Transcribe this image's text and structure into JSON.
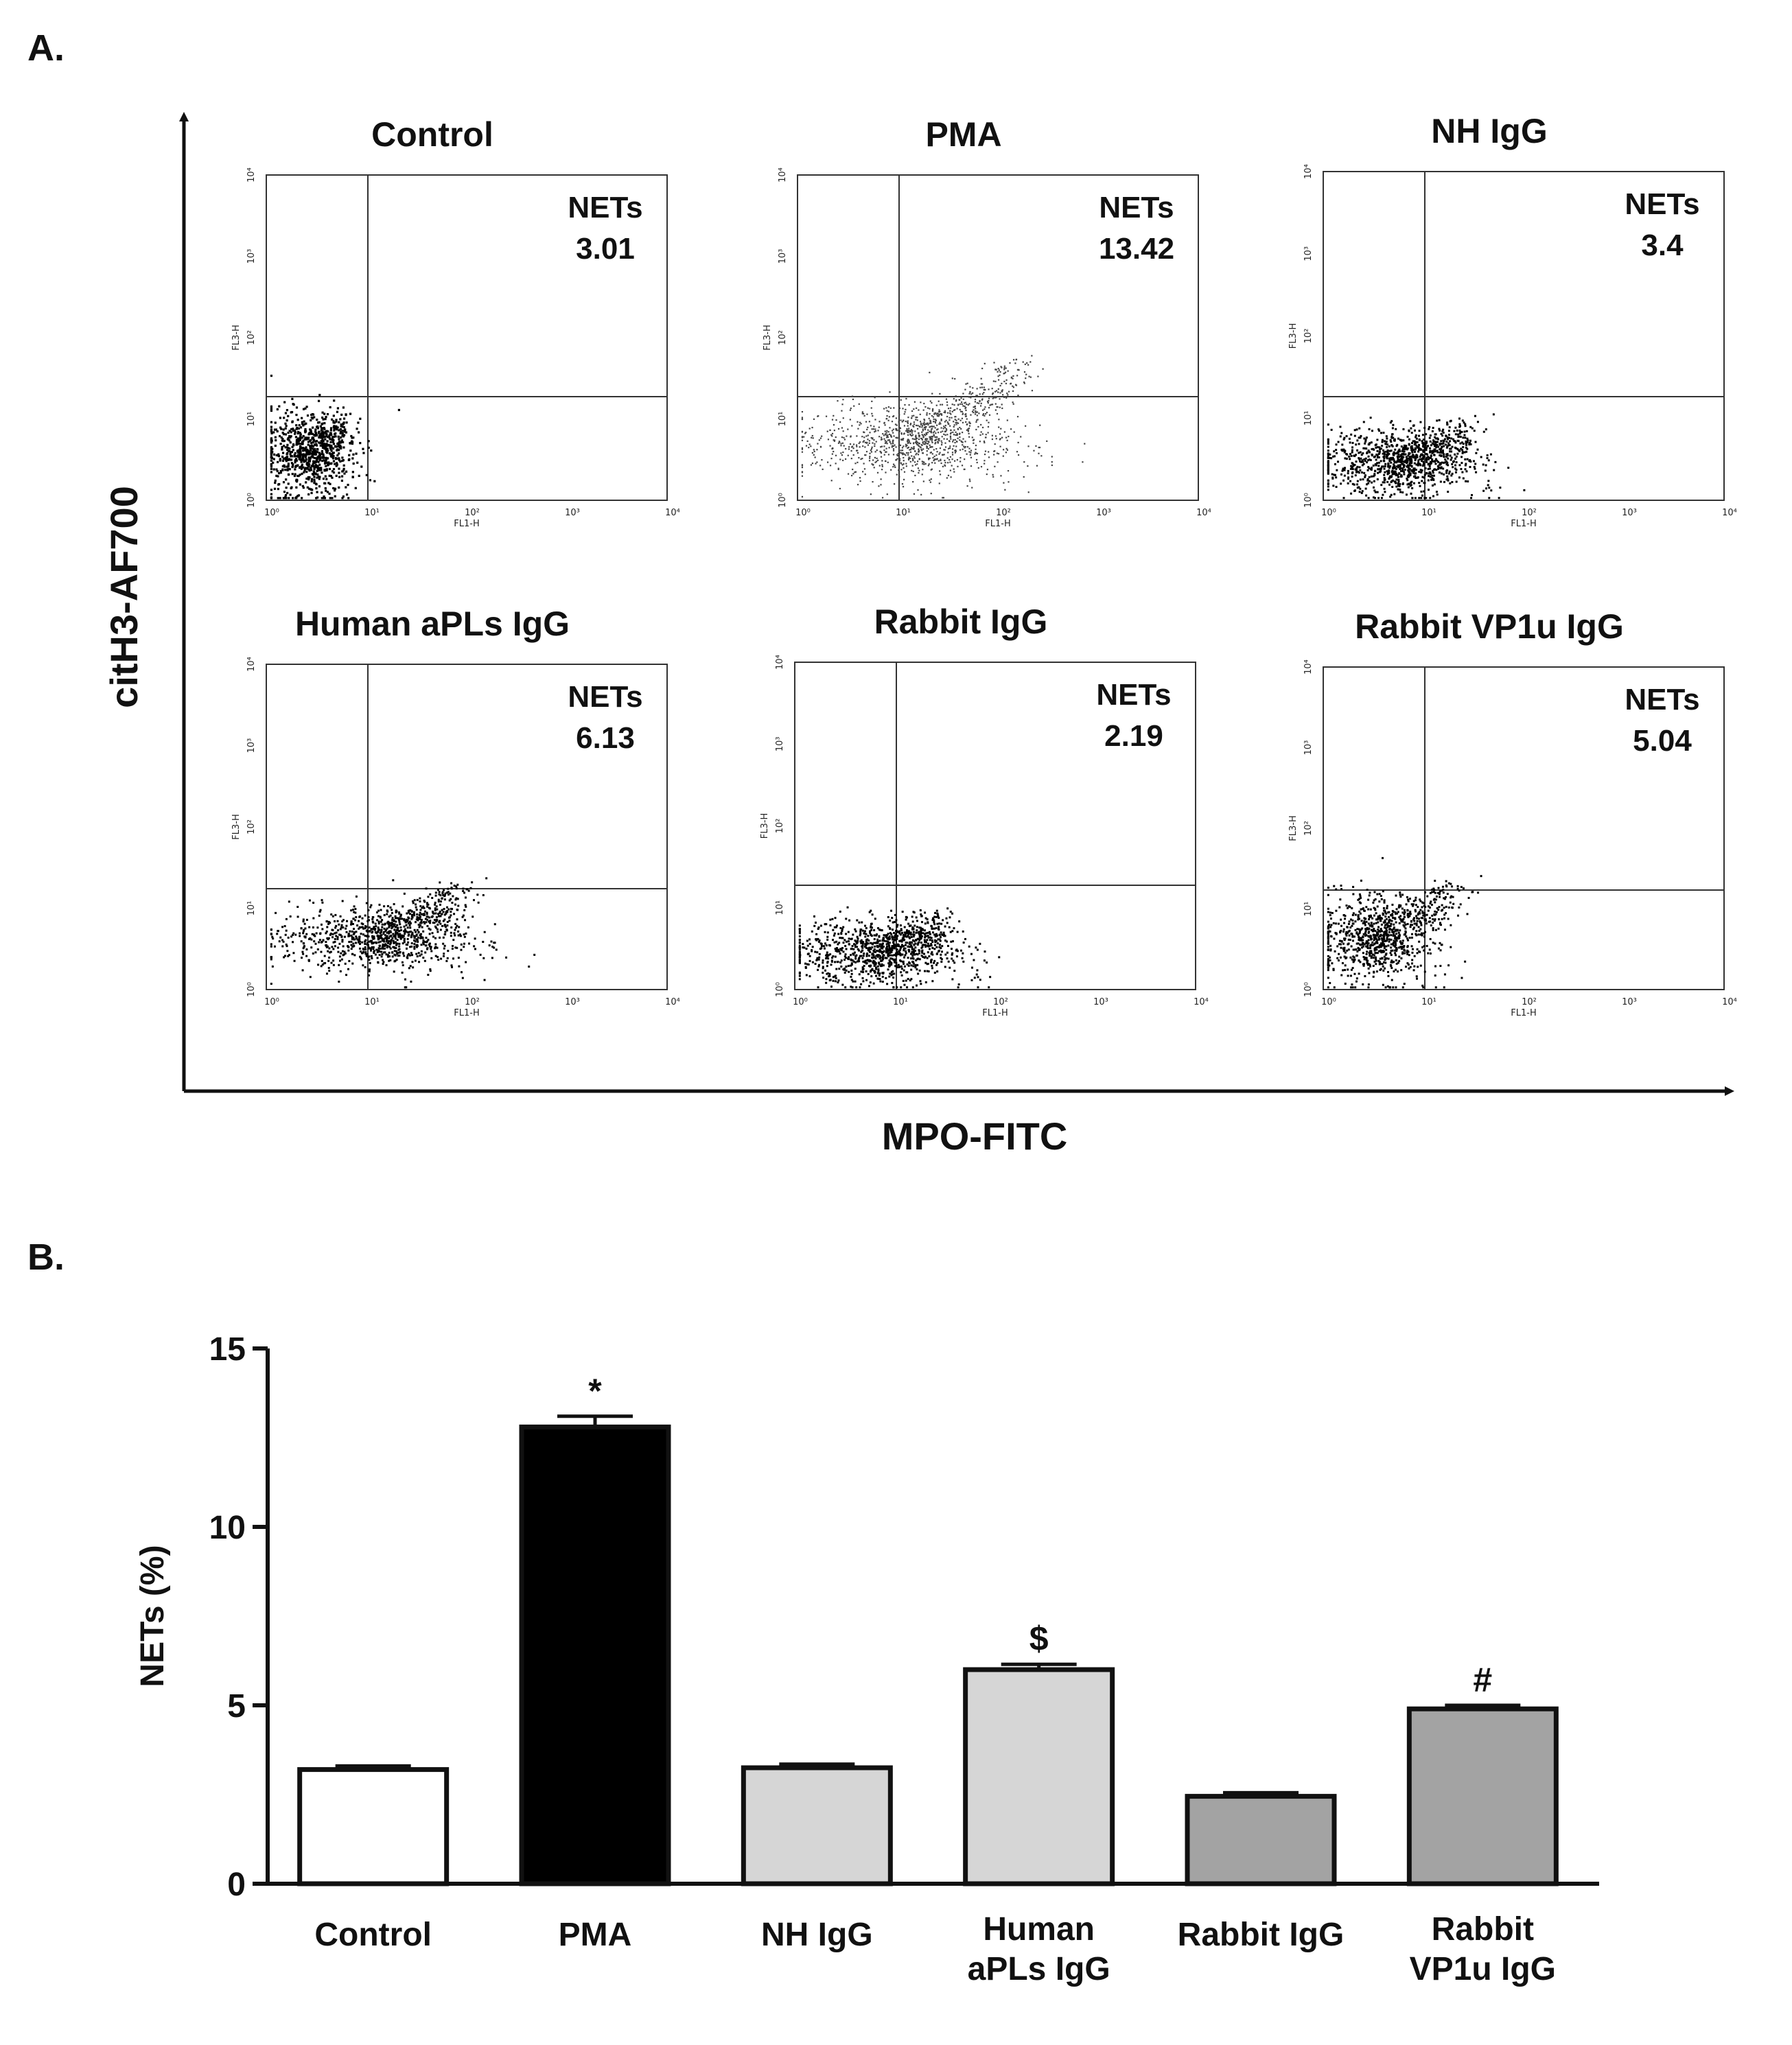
{
  "panel_a": {
    "label": "A.",
    "y_axis_label": "citH3-AF700",
    "x_axis_label": "MPO-FITC",
    "plots": [
      {
        "title": "Control",
        "quadrant_label": "NETs",
        "value": "3.01"
      },
      {
        "title": "PMA",
        "quadrant_label": "NETs",
        "value": "13.42"
      },
      {
        "title": "NH IgG",
        "quadrant_label": "NETs",
        "value": "3.4"
      },
      {
        "title": "Human aPLs IgG",
        "quadrant_label": "NETs",
        "value": "6.13"
      },
      {
        "title": "Rabbit IgG",
        "quadrant_label": "NETs",
        "value": "2.19"
      },
      {
        "title": "Rabbit VP1u IgG",
        "quadrant_label": "NETs",
        "value": "5.04"
      }
    ],
    "plot_axis": {
      "x_channel": "FL1-H",
      "y_channel": "FL3-H",
      "ticks": [
        "10⁰",
        "10¹",
        "10²",
        "10³",
        "10⁴"
      ]
    }
  },
  "panel_b": {
    "label": "B."
  },
  "chart_data": {
    "type": "bar",
    "ylabel": "NETs (%)",
    "xlabel": "",
    "ylim": [
      0,
      15
    ],
    "yticks": [
      "0",
      "5",
      "10",
      "15"
    ],
    "categories": [
      [
        "Control"
      ],
      [
        "PMA"
      ],
      [
        "NH IgG"
      ],
      [
        "Human",
        "aPLs IgG"
      ],
      [
        "Rabbit IgG"
      ],
      [
        "Rabbit",
        "VP1u IgG"
      ]
    ],
    "values": [
      3.2,
      12.8,
      3.25,
      6.0,
      2.45,
      4.9
    ],
    "errors": [
      0.1,
      0.3,
      0.1,
      0.15,
      0.1,
      0.1
    ],
    "annotations": [
      "",
      "*",
      "",
      "$",
      "",
      "#"
    ],
    "colors": [
      "#ffffff",
      "#000000",
      "#d6d6d6",
      "#d6d6d6",
      "#a3a3a3",
      "#a3a3a3"
    ]
  }
}
